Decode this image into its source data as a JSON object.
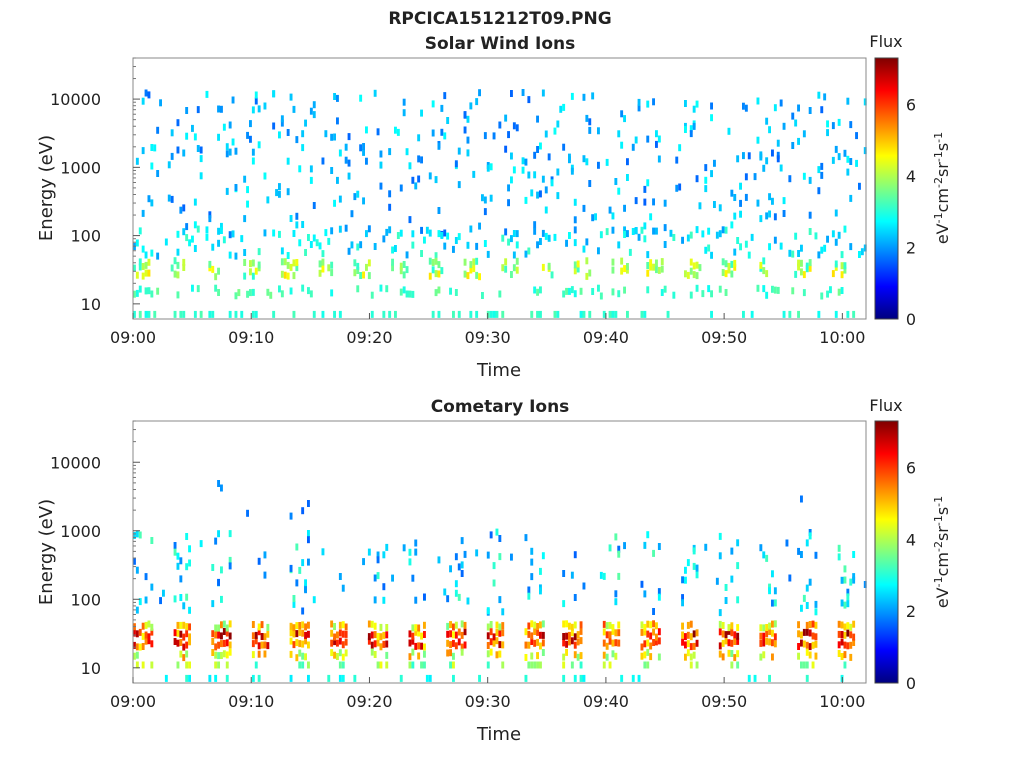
{
  "figure": {
    "title": "RPCICA151212T09.PNG"
  },
  "colorbar_colors": [
    "#00007f",
    "#0000ff",
    "#0080ff",
    "#00ffff",
    "#80ff80",
    "#ffff00",
    "#ff8000",
    "#ff0000",
    "#7f0000"
  ],
  "chart_data": [
    {
      "type": "heatmap",
      "title": "Solar Wind Ions",
      "xlabel": "Time",
      "ylabel": "Energy (eV)",
      "x_ticks": [
        "09:00",
        "09:10",
        "09:20",
        "09:30",
        "09:40",
        "09:50",
        "10:00"
      ],
      "x_range_minutes": [
        0,
        62
      ],
      "y_scale": "log",
      "y_ticks": [
        "10",
        "100",
        "1000",
        "10000"
      ],
      "y_range_ev": [
        6,
        40000
      ],
      "colorbar": {
        "label": "Flux",
        "units": "eV-1cm-2sr-1s-1",
        "range": [
          0,
          7.3
        ],
        "ticks": [
          "0",
          "2",
          "4",
          "6"
        ]
      },
      "features": [
        {
          "energy_ev": [
            15,
            45
          ],
          "flux": [
            2,
            5
          ],
          "description": "intermittent low-energy bursts"
        },
        {
          "energy_ev": [
            100,
            10000
          ],
          "flux": [
            1.5,
            3
          ],
          "description": "sparse scattered counts"
        }
      ]
    },
    {
      "type": "heatmap",
      "title": "Cometary Ions",
      "xlabel": "Time",
      "ylabel": "Energy (eV)",
      "x_ticks": [
        "09:00",
        "09:10",
        "09:20",
        "09:30",
        "09:40",
        "09:50",
        "10:00"
      ],
      "x_range_minutes": [
        0,
        62
      ],
      "y_scale": "log",
      "y_ticks": [
        "10",
        "100",
        "1000",
        "10000"
      ],
      "y_range_ev": [
        6,
        40000
      ],
      "colorbar": {
        "label": "Flux",
        "units": "eV-1cm-2sr-1s-1",
        "range": [
          0,
          7.3
        ],
        "ticks": [
          "0",
          "2",
          "4",
          "6"
        ]
      },
      "features": [
        {
          "energy_ev": [
            12,
            45
          ],
          "flux": [
            3,
            7
          ],
          "description": "periodic intense bursts about every 3 min"
        },
        {
          "energy_ev": [
            60,
            1200
          ],
          "flux": [
            1.5,
            3.5
          ],
          "description": "plume-like streaks above bursts"
        }
      ]
    }
  ]
}
